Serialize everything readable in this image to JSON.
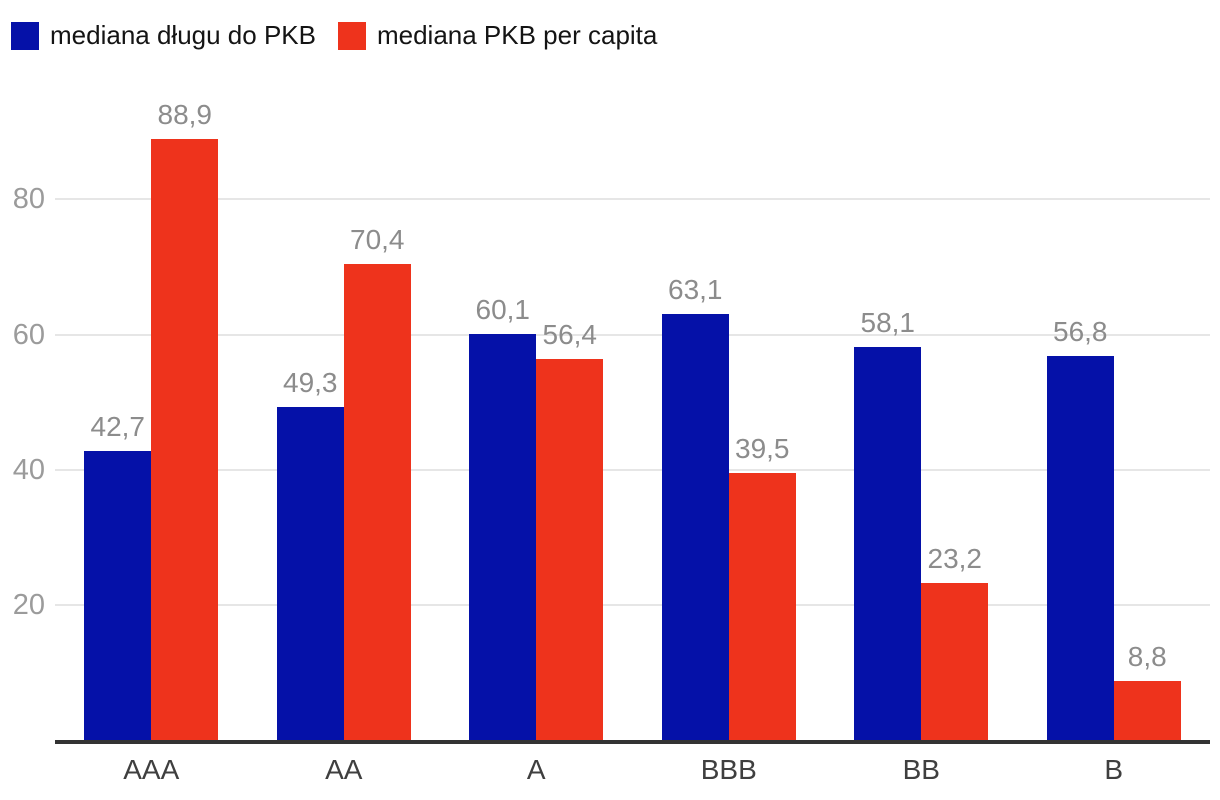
{
  "chart_data": {
    "type": "bar",
    "title": "",
    "categories": [
      "AAA",
      "AA",
      "A",
      "BBB",
      "BB",
      "B"
    ],
    "series": [
      {
        "name": "mediana długu do PKB",
        "color": "#0511A8",
        "values": [
          42.7,
          49.3,
          60.1,
          63.1,
          58.1,
          56.8
        ],
        "labels": [
          "42,7",
          "49,3",
          "60,1",
          "63,1",
          "58,1",
          "56,8"
        ]
      },
      {
        "name": "mediana PKB per capita",
        "color": "#EE331C",
        "values": [
          88.9,
          70.4,
          56.4,
          39.5,
          23.2,
          8.8
        ],
        "labels": [
          "88,9",
          "70,4",
          "56,4",
          "39,5",
          "23,2",
          "8,8"
        ]
      }
    ],
    "y_ticks": [
      20,
      40,
      60,
      80
    ],
    "ylim": [
      0,
      95
    ],
    "grid": true,
    "legend_position": "top-left",
    "xlabel": "",
    "ylabel": "",
    "style": {
      "background": "#ffffff",
      "grid_color": "#e6e6e6",
      "axis_color": "#333333",
      "tick_label_color": "#9b9b9b",
      "value_label_color": "#8c8c8c",
      "category_label_color": "#3f3f3f",
      "legend_text_color": "#141414"
    }
  }
}
